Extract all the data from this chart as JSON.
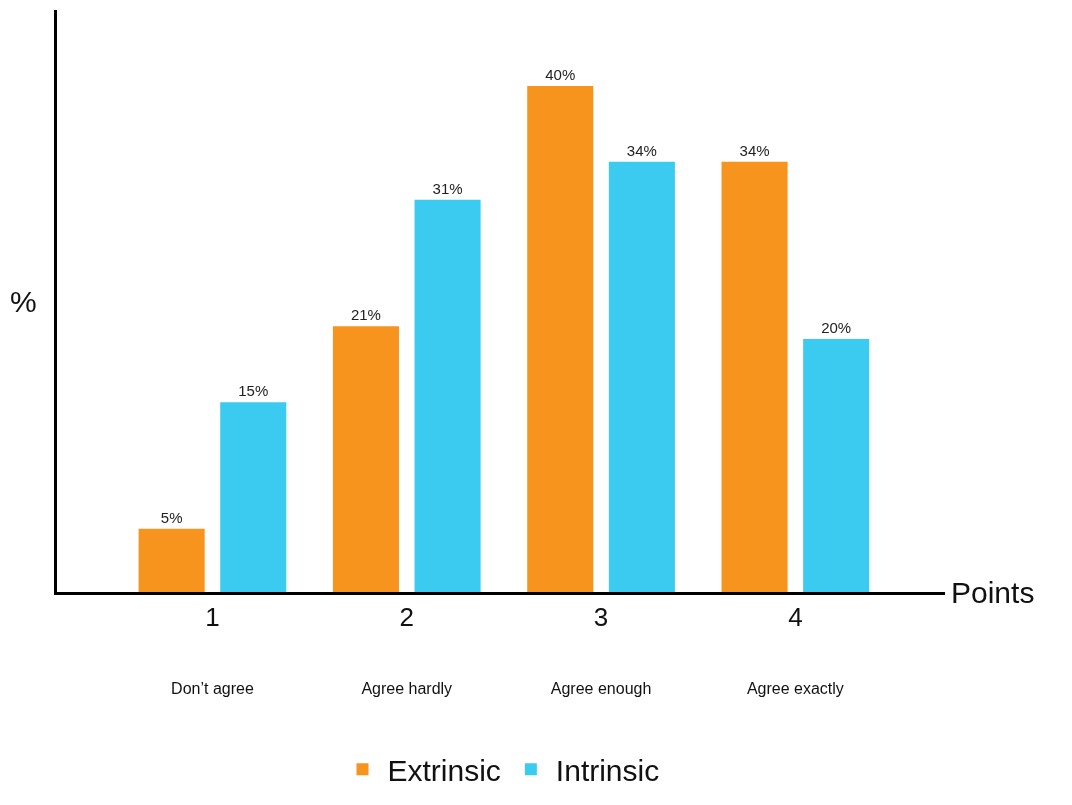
{
  "chart_data": {
    "type": "bar",
    "xlabel": "Points",
    "ylabel": "%",
    "categories": [
      "1\nDon’t agree",
      "2\nAgree hardly",
      "3\nAgree enough",
      "4\nAgree exactly"
    ],
    "series": [
      {
        "name": "Extrinsic",
        "color": "#f7941d",
        "values": [
          5,
          21,
          40,
          34
        ],
        "value_labels": [
          "5%",
          "21%",
          "40%",
          "34%"
        ]
      },
      {
        "name": "Intrinsic",
        "color": "#3ccbf0",
        "values": [
          15,
          31,
          34,
          20
        ],
        "value_labels": [
          "15%",
          "31%",
          "34%",
          "20%"
        ]
      }
    ],
    "ylim": [
      0,
      46
    ],
    "tick_labels": "x",
    "legend": "bottom"
  }
}
